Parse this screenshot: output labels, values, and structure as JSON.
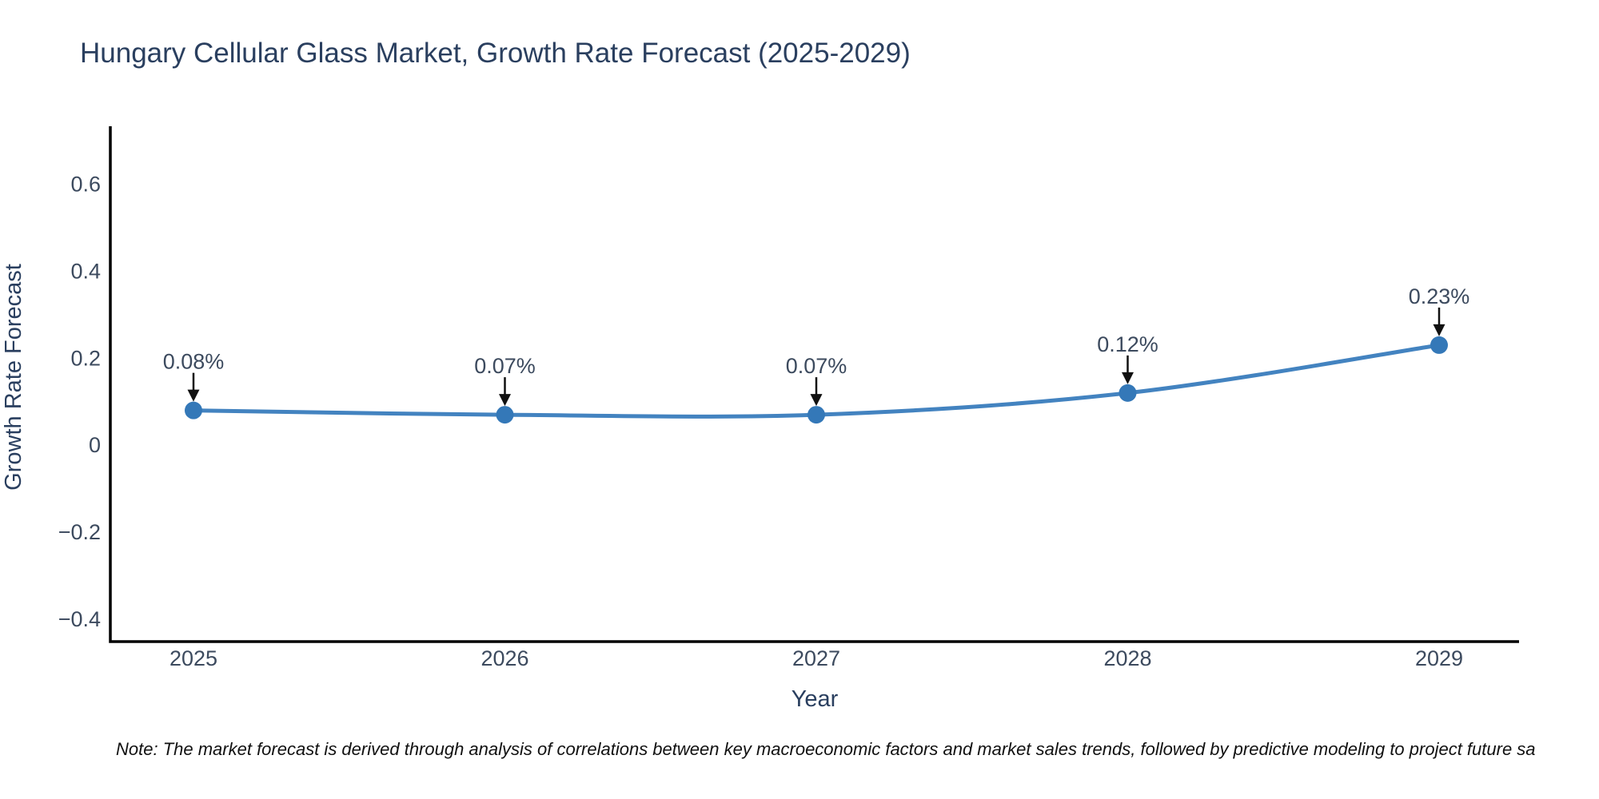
{
  "chart_data": {
    "type": "line",
    "title": "Hungary Cellular Glass Market, Growth Rate Forecast (2025-2029)",
    "xlabel": "Year",
    "ylabel": "Growth Rate Forecast",
    "x": [
      "2025",
      "2026",
      "2027",
      "2028",
      "2029"
    ],
    "values": [
      0.08,
      0.07,
      0.07,
      0.12,
      0.23
    ],
    "point_labels": [
      "0.08%",
      "0.07%",
      "0.07%",
      "0.12%",
      "0.23%"
    ],
    "y_ticks": [
      0.6,
      0.4,
      0.2,
      0,
      -0.2,
      -0.4
    ],
    "ylim": [
      -0.451,
      0.729
    ],
    "grid": false,
    "legend": "none",
    "line_color": "#4383c0",
    "marker_color": "#3478b8",
    "axis_color": "#000000",
    "tick_color": "#3c4a5e",
    "text_color": "#2a3f5f",
    "annotation_color": "#3c4a5e",
    "arrow_color": "#111111"
  },
  "note": {
    "text": "Note: The market forecast is derived through analysis of correlations between key macroeconomic factors and market sales trends, followed by predictive modeling to project future sa"
  }
}
